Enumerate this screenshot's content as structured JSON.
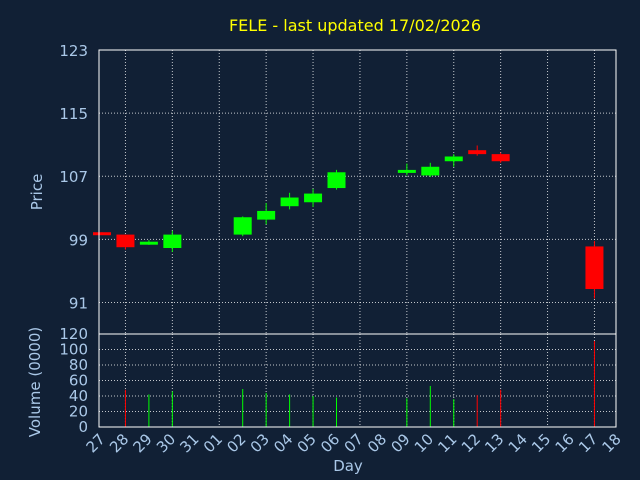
{
  "chart_data": [
    {
      "type": "candlestick",
      "title": "FELE - last updated 17/02/2026",
      "xlabel": "",
      "ylabel": "Price",
      "ylim": [
        87,
        123
      ],
      "yticks": [
        123,
        115,
        107,
        99,
        91
      ],
      "grid": true,
      "colors": {
        "up": "#00ff00",
        "down": "#ff0000",
        "grid": "#ffffff",
        "title": "#ffff00",
        "axis_text": "#aac8e8"
      },
      "x_tick_labels": [
        "27",
        "28",
        "29",
        "30",
        "31",
        "01",
        "02",
        "03",
        "04",
        "05",
        "06",
        "07",
        "08",
        "09",
        "10",
        "11",
        "12",
        "13",
        "14",
        "15",
        "16",
        "17",
        "18"
      ],
      "candles": [
        {
          "day": "27",
          "open": 99.9,
          "close": 99.6,
          "high": 99.9,
          "low": 99.6
        },
        {
          "day": "28",
          "open": 99.6,
          "close": 98.0,
          "high": 99.6,
          "low": 97.7
        },
        {
          "day": "29",
          "open": 98.5,
          "close": 98.7,
          "high": 98.9,
          "low": 98.3
        },
        {
          "day": "30",
          "open": 97.9,
          "close": 99.6,
          "high": 100.1,
          "low": 97.4
        },
        {
          "day": "02",
          "open": 99.6,
          "close": 101.8,
          "high": 101.9,
          "low": 99.4
        },
        {
          "day": "03",
          "open": 101.5,
          "close": 102.6,
          "high": 103.6,
          "low": 100.9
        },
        {
          "day": "04",
          "open": 103.2,
          "close": 104.3,
          "high": 104.9,
          "low": 102.8
        },
        {
          "day": "05",
          "open": 103.7,
          "close": 104.8,
          "high": 105.4,
          "low": 103.1
        },
        {
          "day": "06",
          "open": 105.5,
          "close": 107.5,
          "high": 107.8,
          "low": 105.3
        },
        {
          "day": "09",
          "open": 107.5,
          "close": 107.8,
          "high": 108.6,
          "low": 107.1
        },
        {
          "day": "10",
          "open": 107.1,
          "close": 108.2,
          "high": 108.7,
          "low": 106.9
        },
        {
          "day": "11",
          "open": 108.9,
          "close": 109.5,
          "high": 109.8,
          "low": 108.2
        },
        {
          "day": "12",
          "open": 110.3,
          "close": 109.8,
          "high": 110.9,
          "low": 109.6
        },
        {
          "day": "13",
          "open": 109.8,
          "close": 108.9,
          "high": 110.0,
          "low": 108.7
        },
        {
          "day": "17",
          "open": 98.1,
          "close": 92.7,
          "high": 98.8,
          "low": 91.5
        }
      ]
    },
    {
      "type": "bar",
      "title": "",
      "xlabel": "Day",
      "ylabel": "Volume (0000)",
      "ylim": [
        0,
        120
      ],
      "yticks": [
        0,
        20,
        40,
        60,
        80,
        100,
        120
      ],
      "grid": true,
      "categories": [
        "28",
        "29",
        "30",
        "02",
        "03",
        "04",
        "05",
        "06",
        "09",
        "10",
        "11",
        "12",
        "13",
        "17"
      ],
      "values": [
        48,
        42,
        46,
        49,
        44,
        42,
        40,
        38,
        37,
        53,
        36,
        41,
        48,
        111
      ],
      "bar_colors": [
        "#ff0000",
        "#00ff00",
        "#00ff00",
        "#00ff00",
        "#00ff00",
        "#00ff00",
        "#00ff00",
        "#00ff00",
        "#00ff00",
        "#00ff00",
        "#00ff00",
        "#ff0000",
        "#ff0000",
        "#ff0000"
      ]
    }
  ]
}
